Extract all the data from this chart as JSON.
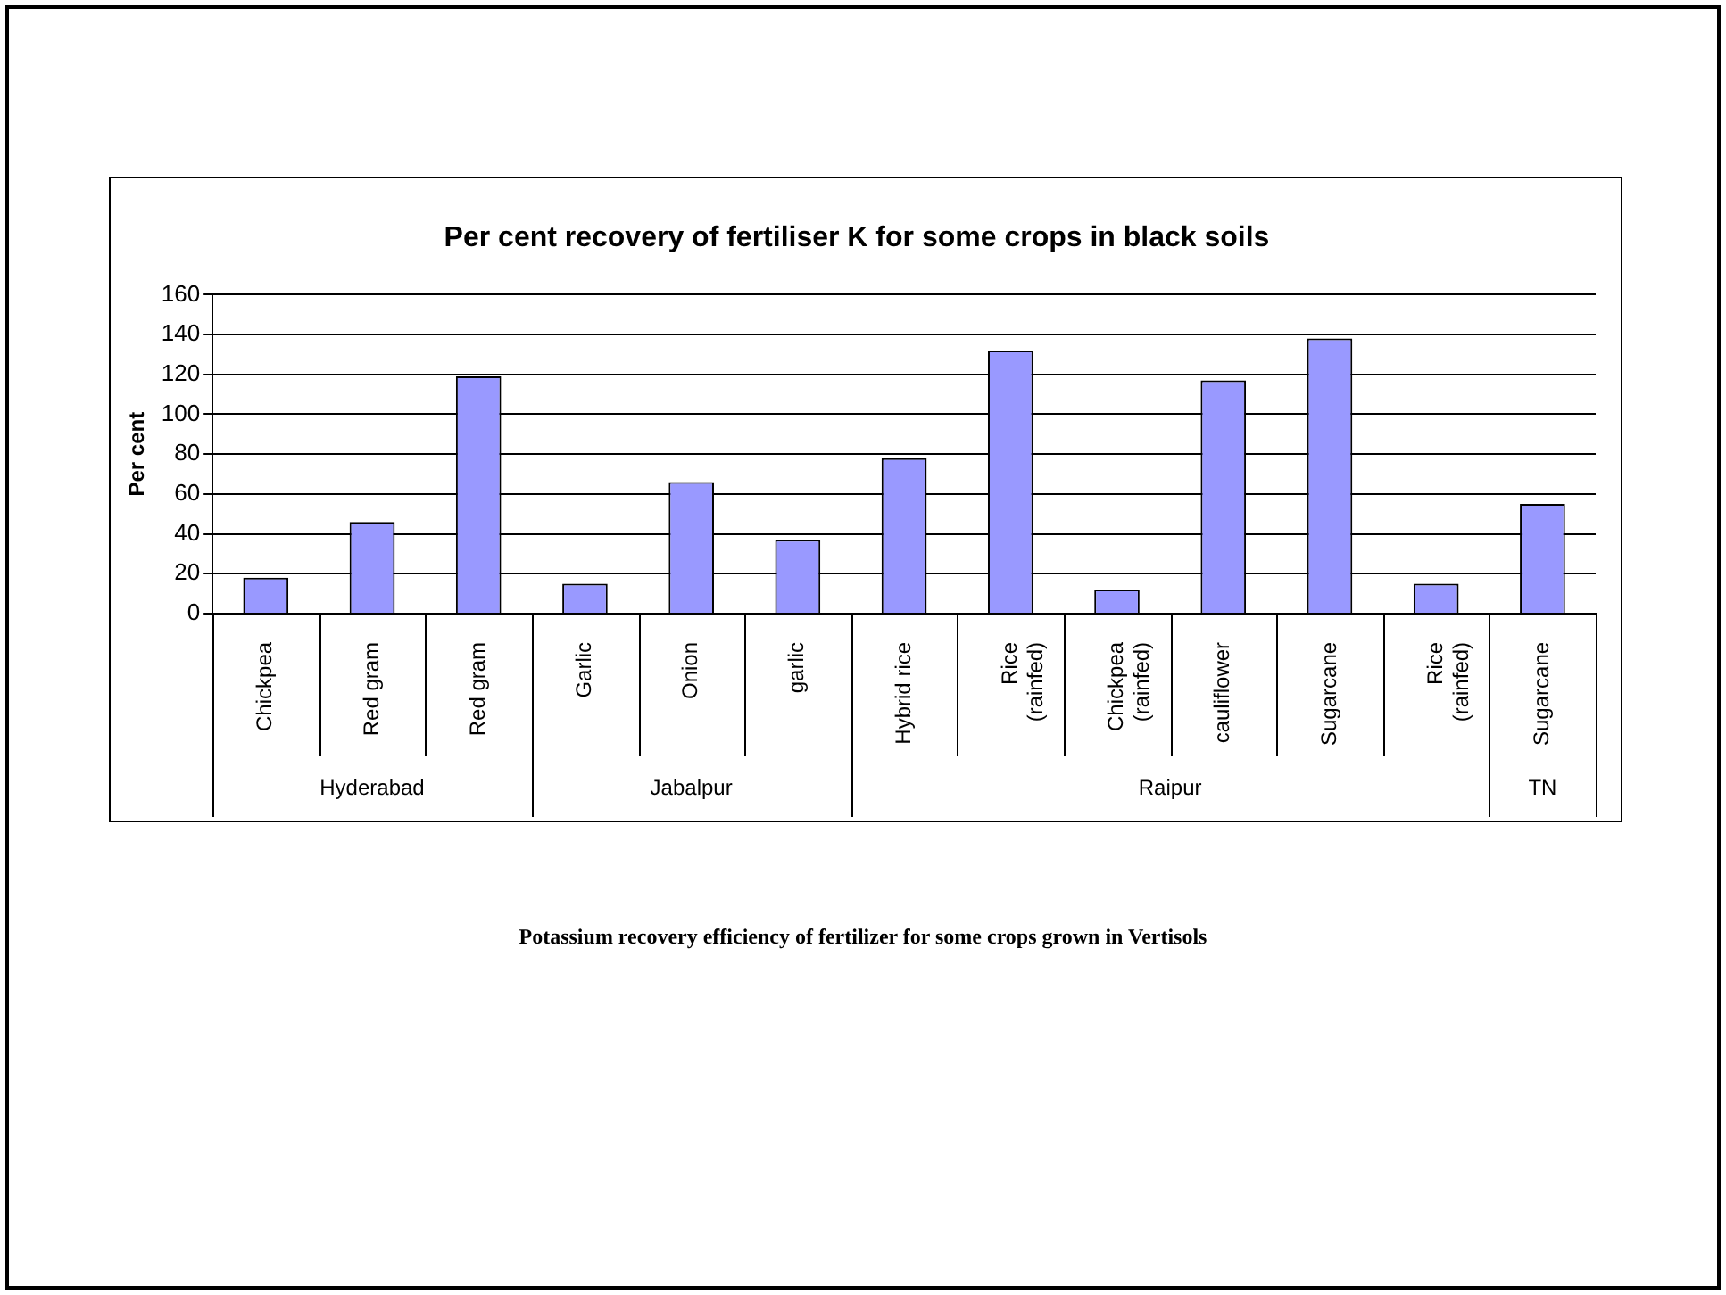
{
  "chart_data": {
    "type": "bar",
    "title": "Per cent recovery of fertiliser K for some crops in black soils",
    "ylabel": "Per cent",
    "categories": [
      "Chickpea",
      "Red gram",
      "Red gram",
      "Garlic",
      "Onion",
      "garlic",
      "Hybrid rice",
      "Rice (rainfed)",
      "Chickpea (rainfed)",
      "cauliflower",
      "Sugarcane",
      "Rice (rainfed)",
      "Sugarcane"
    ],
    "values": [
      18,
      46,
      119,
      15,
      66,
      37,
      78,
      132,
      12,
      117,
      138,
      15,
      55
    ],
    "color": "#9999ff",
    "ylim": [
      0,
      160
    ],
    "yticks": [
      0,
      20,
      40,
      60,
      80,
      100,
      120,
      140,
      160
    ],
    "grid": "y",
    "legend": false,
    "annotations": [
      "Hyderabad",
      "Jabalpur",
      "Raipur",
      "TN",
      "Potassium recovery efficiency of fertilizer for some crops grown in Vertisols"
    ]
  }
}
